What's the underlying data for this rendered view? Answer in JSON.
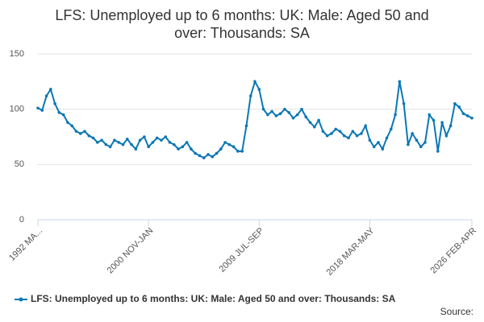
{
  "chart_data": {
    "type": "line",
    "title": [
      "LFS: Unemployed up to 6 months: UK: Male: Aged 50 and",
      "over: Thousands: SA"
    ],
    "source": "Source:",
    "categories": [
      "1992 MA...",
      null,
      null,
      null,
      null,
      null,
      null,
      null,
      null,
      null,
      null,
      null,
      null,
      null,
      null,
      null,
      null,
      null,
      null,
      null,
      null,
      null,
      null,
      null,
      null,
      null,
      "2000 NOV-JAN",
      null,
      null,
      null,
      null,
      null,
      null,
      null,
      null,
      null,
      null,
      null,
      null,
      null,
      null,
      null,
      null,
      null,
      null,
      null,
      null,
      null,
      null,
      null,
      null,
      null,
      "2009 JUL-SEP",
      null,
      null,
      null,
      null,
      null,
      null,
      null,
      null,
      null,
      null,
      null,
      null,
      null,
      null,
      null,
      null,
      null,
      null,
      null,
      null,
      null,
      null,
      null,
      null,
      null,
      "2018 MAR-MAY",
      null,
      null,
      null,
      null,
      null,
      null,
      null,
      null,
      null,
      null,
      null,
      null,
      null,
      null,
      null,
      null,
      null,
      null,
      null,
      null,
      null,
      null,
      null,
      "2026 FEB-APR"
    ],
    "series": [
      {
        "name": "LFS: Unemployed up to 6 months: UK: Male: Aged 50 and over: Thousands: SA",
        "color": "#0a77b5",
        "values": [
          101,
          99,
          112,
          118,
          105,
          97,
          95,
          88,
          85,
          80,
          78,
          80,
          76,
          74,
          70,
          72,
          68,
          66,
          72,
          70,
          68,
          73,
          68,
          64,
          72,
          75,
          66,
          70,
          74,
          72,
          75,
          70,
          68,
          64,
          66,
          70,
          64,
          60,
          58,
          56,
          59,
          57,
          60,
          64,
          70,
          68,
          66,
          62,
          62,
          85,
          112,
          125,
          118,
          100,
          95,
          98,
          94,
          96,
          100,
          97,
          92,
          95,
          100,
          93,
          88,
          84,
          90,
          80,
          76,
          78,
          82,
          80,
          76,
          74,
          80,
          76,
          78,
          85,
          72,
          66,
          70,
          64,
          74,
          82,
          95,
          125,
          105,
          68,
          78,
          72,
          66,
          70,
          95,
          90,
          62,
          88,
          76,
          85,
          105,
          102,
          96,
          94,
          92
        ]
      }
    ],
    "ylim": [
      0,
      150
    ],
    "yticks": [
      0,
      50,
      100,
      150
    ],
    "grid": true
  }
}
